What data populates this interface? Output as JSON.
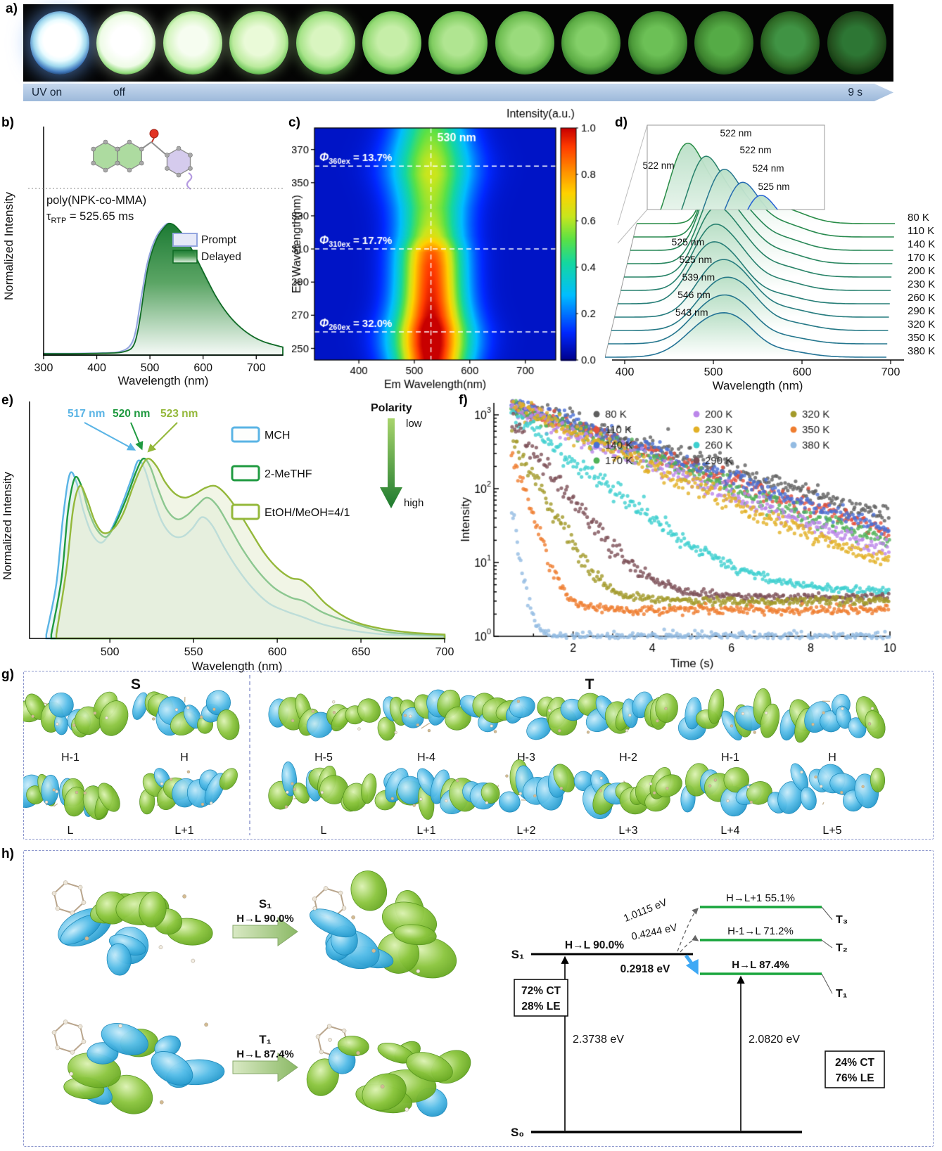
{
  "panels": {
    "a": "a)",
    "b": "b)",
    "c": "c)",
    "d": "d)",
    "e": "e)",
    "f": "f)",
    "g": "g)",
    "h": "h)"
  },
  "panel_a": {
    "uv_on": "UV on",
    "off": "off",
    "end_time": "9 s",
    "num_vials": 13
  },
  "colors": {
    "accent_green": "#1aa340",
    "accent_blue": "#3fa9f5",
    "timeline_blue": "#aec8e6"
  },
  "chart_data": [
    {
      "id": "b",
      "type": "area",
      "xlabel": "Wavelength (nm)",
      "ylabel": "Normalized Intensity",
      "xlim": [
        300,
        750
      ],
      "xticks": [
        300,
        400,
        500,
        600,
        700
      ],
      "annotations": {
        "polymer": "poly(NPK-co-MMA)",
        "tau_pre": "τ",
        "tau_sub": "RTP",
        "tau_post": " = 525.65 ms"
      },
      "series": [
        {
          "name": "Prompt",
          "color": "#93a5de",
          "fill": "#e6e9f8",
          "x": [
            300,
            350,
            400,
            435,
            450,
            460,
            468,
            474,
            480,
            487,
            494,
            502,
            512,
            522,
            533,
            543,
            553,
            563,
            576,
            590,
            606,
            623,
            643,
            663,
            688,
            713,
            750
          ],
          "y": [
            0.012,
            0.012,
            0.015,
            0.02,
            0.035,
            0.06,
            0.11,
            0.2,
            0.35,
            0.52,
            0.68,
            0.8,
            0.9,
            0.96,
            1.0,
            0.99,
            0.95,
            0.9,
            0.81,
            0.7,
            0.57,
            0.44,
            0.32,
            0.23,
            0.15,
            0.1,
            0.06
          ]
        },
        {
          "name": "Delayed",
          "color": "#0f6b24",
          "fill": "gradient",
          "x": [
            300,
            350,
            400,
            440,
            455,
            465,
            472,
            478,
            484,
            490,
            497,
            505,
            515,
            525,
            535,
            545,
            555,
            565,
            578,
            592,
            608,
            625,
            645,
            665,
            690,
            715,
            750
          ],
          "y": [
            0.01,
            0.01,
            0.013,
            0.018,
            0.03,
            0.05,
            0.1,
            0.2,
            0.35,
            0.52,
            0.68,
            0.8,
            0.9,
            0.96,
            1.0,
            0.99,
            0.95,
            0.9,
            0.81,
            0.7,
            0.57,
            0.44,
            0.32,
            0.23,
            0.15,
            0.1,
            0.06
          ]
        }
      ]
    },
    {
      "id": "c",
      "type": "heatmap",
      "xlabel": "Em Wavelength(nm)",
      "ylabel": "Ex Wavelength(nm)",
      "colorbar_title": "Intensity(a.u.)",
      "xlim": [
        320,
        755
      ],
      "ylim": [
        243,
        383
      ],
      "xticks": [
        400,
        500,
        600,
        700
      ],
      "yticks": [
        250,
        270,
        290,
        310,
        330,
        350,
        370
      ],
      "ctick_labels": [
        "0.0",
        "0.2",
        "0.4",
        "0.6",
        "0.8",
        "1.0"
      ],
      "em_band": {
        "center": 530,
        "sigma": 40
      },
      "ex_profile": {
        "ex": [
          243,
          252,
          262,
          270,
          280,
          290,
          300,
          308,
          312,
          318,
          325,
          335,
          345,
          355,
          365,
          375,
          383
        ],
        "amp": [
          0.97,
          1.0,
          1.0,
          0.94,
          0.9,
          0.88,
          0.86,
          0.82,
          0.72,
          0.6,
          0.55,
          0.52,
          0.54,
          0.57,
          0.55,
          0.5,
          0.46
        ]
      },
      "vline": {
        "x": 530,
        "label": "530 nm"
      },
      "hlines": [
        {
          "ex": 360,
          "pre": "Φ",
          "sub": "360ex",
          "post": " = 13.7%"
        },
        {
          "ex": 310,
          "pre": "Φ",
          "sub": "310ex",
          "post": " = 17.7%"
        },
        {
          "ex": 260,
          "pre": "Φ",
          "sub": "260ex",
          "post": " = 32.0%"
        }
      ]
    },
    {
      "id": "d",
      "type": "waterfall",
      "xlabel": "Wavelength (nm)",
      "xticks": [
        400,
        500,
        600,
        700
      ],
      "temperatures": [
        "80 K",
        "110 K",
        "140 K",
        "170 K",
        "200 K",
        "230 K",
        "260 K",
        "290 K",
        "320 K",
        "350 K",
        "380 K"
      ],
      "peak_nm": [
        522,
        522,
        522,
        524,
        525,
        525,
        525,
        539,
        546,
        543,
        543
      ],
      "inset_labels": [
        "522 nm",
        "522 nm",
        "522 nm",
        "524 nm",
        "525 nm"
      ],
      "ridge_labels": [
        "525 nm",
        "525 nm",
        "539 nm",
        "546 nm",
        "543 nm"
      ]
    },
    {
      "id": "e",
      "type": "line",
      "xlabel": "Wavelength (nm)",
      "ylabel": "Normalized Intensity",
      "xlim": [
        452,
        700
      ],
      "xticks": [
        500,
        550,
        600,
        650,
        700
      ],
      "polarity": {
        "title": "Polarity",
        "low": "low",
        "high": "high"
      },
      "series": [
        {
          "name": "MCH",
          "color": "#5ab4e5",
          "fill": "rgba(214,236,247,0.40)",
          "peak_label": "517 nm",
          "x": [
            462,
            468,
            472,
            476,
            480,
            484,
            489,
            495,
            501,
            507,
            513,
            517,
            521,
            526,
            531,
            537,
            543,
            549,
            555,
            561,
            568,
            576,
            585,
            595,
            605,
            615,
            628,
            645,
            665,
            700
          ],
          "y": [
            0.02,
            0.28,
            0.62,
            0.84,
            0.8,
            0.66,
            0.54,
            0.49,
            0.56,
            0.68,
            0.82,
            0.91,
            0.86,
            0.72,
            0.6,
            0.53,
            0.52,
            0.56,
            0.62,
            0.58,
            0.47,
            0.36,
            0.26,
            0.18,
            0.14,
            0.11,
            0.07,
            0.04,
            0.02,
            0.01
          ]
        },
        {
          "name": "2-MeTHF",
          "color": "#1f9a40",
          "fill": "rgba(215,236,215,0.40)",
          "peak_label": "520 nm",
          "x": [
            465,
            471,
            475,
            479,
            483,
            487,
            492,
            498,
            504,
            510,
            516,
            520,
            524,
            529,
            534,
            540,
            546,
            552,
            558,
            564,
            571,
            579,
            588,
            598,
            608,
            616,
            628,
            648,
            668,
            700
          ],
          "y": [
            0.02,
            0.3,
            0.65,
            0.82,
            0.78,
            0.66,
            0.56,
            0.52,
            0.6,
            0.72,
            0.86,
            0.92,
            0.88,
            0.76,
            0.66,
            0.61,
            0.63,
            0.68,
            0.72,
            0.68,
            0.58,
            0.46,
            0.35,
            0.26,
            0.21,
            0.19,
            0.13,
            0.07,
            0.03,
            0.015
          ]
        },
        {
          "name": "EtOH/MeOH=4/1",
          "color": "#94b83a",
          "fill": "rgba(230,237,210,0.55)",
          "peak_label": "523 nm",
          "x": [
            468,
            474,
            478,
            482,
            486,
            491,
            496,
            502,
            508,
            514,
            519,
            523,
            528,
            533,
            539,
            545,
            551,
            557,
            563,
            569,
            576,
            584,
            592,
            600,
            608,
            614,
            620,
            630,
            645,
            662,
            680,
            700
          ],
          "y": [
            0.02,
            0.35,
            0.66,
            0.78,
            0.72,
            0.6,
            0.54,
            0.56,
            0.64,
            0.78,
            0.88,
            0.92,
            0.88,
            0.8,
            0.74,
            0.72,
            0.74,
            0.77,
            0.78,
            0.74,
            0.66,
            0.55,
            0.44,
            0.36,
            0.31,
            0.3,
            0.26,
            0.17,
            0.09,
            0.05,
            0.03,
            0.02
          ]
        }
      ]
    },
    {
      "id": "f",
      "type": "scatter",
      "xlabel": "Time (s)",
      "ylabel": "Intensity",
      "xlim": [
        0,
        10
      ],
      "xticks": [
        2,
        4,
        6,
        8,
        10
      ],
      "ylog_exponents": [
        0,
        1,
        2,
        3
      ],
      "series": [
        {
          "name": "80 K",
          "color": "#5f5f5f",
          "tau": 2.6,
          "floor": 4.6
        },
        {
          "name": "110 K",
          "color": "#e5503c",
          "tau": 2.4,
          "floor": 4.2
        },
        {
          "name": "140 K",
          "color": "#4a6fd4",
          "tau": 2.3,
          "floor": 4.4
        },
        {
          "name": "170 K",
          "color": "#51b257",
          "tau": 2.15,
          "floor": 4.0
        },
        {
          "name": "200 K",
          "color": "#bb86ea",
          "tau": 2.0,
          "floor": 4.3
        },
        {
          "name": "230 K",
          "color": "#e2b026",
          "tau": 1.75,
          "floor": 4.1
        },
        {
          "name": "260 K",
          "color": "#3ecfcf",
          "tau": 1.05,
          "floor": 4.0
        },
        {
          "name": "290 K",
          "color": "#7d5058",
          "tau": 0.62,
          "floor": 3.4
        },
        {
          "name": "320 K",
          "color": "#a39a2a",
          "tau": 0.42,
          "floor": 3.0
        },
        {
          "name": "350 K",
          "color": "#ef7d2f",
          "tau": 0.26,
          "floor": 2.3
        },
        {
          "name": "380 K",
          "color": "#93bbe2",
          "tau": 0.13,
          "floor": 1.0
        }
      ]
    }
  ],
  "panel_g": {
    "s_title": "S",
    "t_title": "T",
    "s_row1": [
      "H-1",
      "H"
    ],
    "s_row2": [
      "L",
      "L+1"
    ],
    "t_row1": [
      "H-5",
      "H-4",
      "H-3",
      "H-2",
      "H-1",
      "H"
    ],
    "t_row2": [
      "L",
      "L+1",
      "L+2",
      "L+3",
      "L+4",
      "L+5"
    ]
  },
  "panel_h": {
    "left": {
      "s1_title": "S₁",
      "s1_trans": "H→L 90.0%",
      "t1_title": "T₁",
      "t1_trans": "H→L 87.4%"
    },
    "diagram": {
      "s0": "S₀",
      "s1": "S₁",
      "t1": "T₁",
      "t2": "T₂",
      "t3": "T₃",
      "s1_trans": "H→L 90.0%",
      "t1_trans": "H→L 87.4%",
      "t2_trans": "H-1→L 71.2%",
      "t3_trans": "H→L+1 55.1%",
      "gap_s1_t3": "1.0115 eV",
      "gap_s1_t2": "0.4244 eV",
      "gap_s1_t1": "0.2918 eV",
      "e_s1": "2.3738 eV",
      "e_t1": "2.0820 eV",
      "box_left": [
        "72% CT",
        "28% LE"
      ],
      "box_right": [
        "24% CT",
        "76% LE"
      ]
    }
  }
}
